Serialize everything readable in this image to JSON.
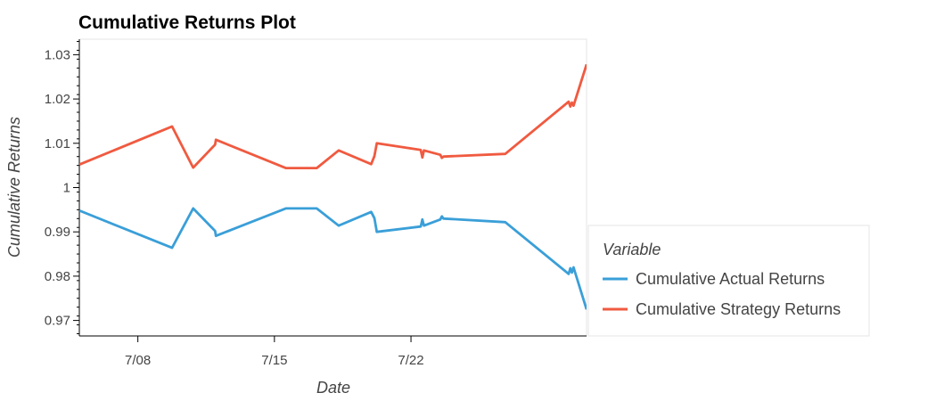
{
  "chart_data": {
    "type": "line",
    "title": "Cumulative Returns Plot",
    "xlabel": "Date",
    "ylabel": "Cumulative Returns",
    "xlim": [
      "2021-07-05",
      "2021-07-31"
    ],
    "ylim": [
      0.9665,
      1.0335
    ],
    "x_ticks": [
      {
        "date": "2021-07-08",
        "label": "7/08"
      },
      {
        "date": "2021-07-15",
        "label": "7/15"
      },
      {
        "date": "2021-07-22",
        "label": "7/22"
      }
    ],
    "y_ticks": [
      {
        "value": 0.97,
        "label": "0.97"
      },
      {
        "value": 0.98,
        "label": "0.98"
      },
      {
        "value": 0.99,
        "label": "0.99"
      },
      {
        "value": 1.0,
        "label": "1"
      },
      {
        "value": 1.01,
        "label": "1.01"
      },
      {
        "value": 1.02,
        "label": "1.02"
      },
      {
        "value": 1.03,
        "label": "1.03"
      }
    ],
    "grid": false,
    "legend": {
      "title": "Variable",
      "placement": "right"
    },
    "series": [
      {
        "name": "Cumulative Actual Returns",
        "color": "#3a9fd8",
        "points": [
          [
            "2021-07-05 00:00",
            0.9948
          ],
          [
            "2021-07-09 18:00",
            0.9864
          ],
          [
            "2021-07-10 20:00",
            0.9953
          ],
          [
            "2021-07-11 23:00",
            0.9902
          ],
          [
            "2021-07-12 00:00",
            0.9891
          ],
          [
            "2021-07-15 14:00",
            0.9953
          ],
          [
            "2021-07-17 04:00",
            0.9953
          ],
          [
            "2021-07-18 07:00",
            0.9914
          ],
          [
            "2021-07-19 23:00",
            0.9945
          ],
          [
            "2021-07-20 03:00",
            0.9931
          ],
          [
            "2021-07-20 06:00",
            0.99
          ],
          [
            "2021-07-22 12:00",
            0.9912
          ],
          [
            "2021-07-22 14:00",
            0.9928
          ],
          [
            "2021-07-22 16:00",
            0.9914
          ],
          [
            "2021-07-23 12:00",
            0.9928
          ],
          [
            "2021-07-23 14:00",
            0.9935
          ],
          [
            "2021-07-23 16:00",
            0.993
          ],
          [
            "2021-07-26 20:00",
            0.9922
          ],
          [
            "2021-07-30 02:00",
            0.9805
          ],
          [
            "2021-07-30 04:00",
            0.9818
          ],
          [
            "2021-07-30 06:00",
            0.9808
          ],
          [
            "2021-07-30 08:00",
            0.982
          ],
          [
            "2021-07-31 00:00",
            0.9725
          ]
        ]
      },
      {
        "name": "Cumulative Strategy Returns",
        "color": "#f05a40",
        "points": [
          [
            "2021-07-05 00:00",
            1.0052
          ],
          [
            "2021-07-09 18:00",
            1.0138
          ],
          [
            "2021-07-10 20:00",
            1.0045
          ],
          [
            "2021-07-11 23:00",
            1.0097
          ],
          [
            "2021-07-12 00:00",
            1.0108
          ],
          [
            "2021-07-15 14:00",
            1.0044
          ],
          [
            "2021-07-17 04:00",
            1.0044
          ],
          [
            "2021-07-18 07:00",
            1.0084
          ],
          [
            "2021-07-19 23:00",
            1.0053
          ],
          [
            "2021-07-20 03:00",
            1.0071
          ],
          [
            "2021-07-20 06:00",
            1.01
          ],
          [
            "2021-07-22 12:00",
            1.0085
          ],
          [
            "2021-07-22 14:00",
            1.0068
          ],
          [
            "2021-07-22 16:00",
            1.0084
          ],
          [
            "2021-07-23 12:00",
            1.0074
          ],
          [
            "2021-07-23 14:00",
            1.0067
          ],
          [
            "2021-07-23 16:00",
            1.007
          ],
          [
            "2021-07-26 20:00",
            1.0076
          ],
          [
            "2021-07-30 02:00",
            1.0194
          ],
          [
            "2021-07-30 04:00",
            1.0183
          ],
          [
            "2021-07-30 06:00",
            1.0192
          ],
          [
            "2021-07-30 08:00",
            1.0185
          ],
          [
            "2021-07-31 00:00",
            1.0278
          ]
        ]
      }
    ]
  }
}
